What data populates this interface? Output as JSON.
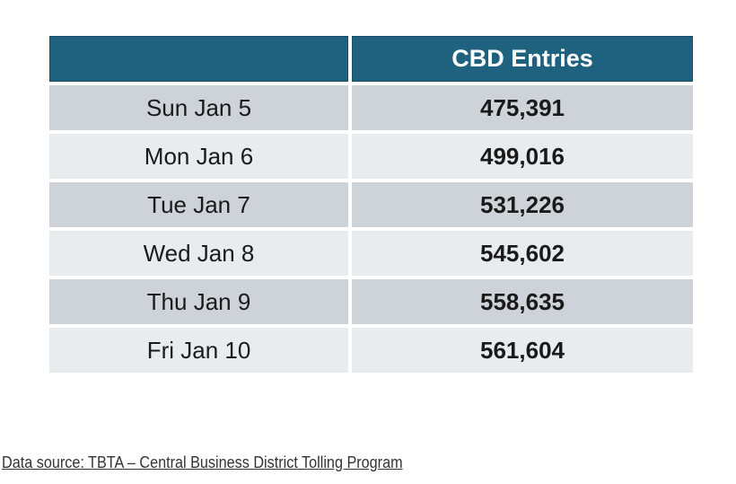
{
  "chart_data": {
    "type": "table",
    "title": "",
    "columns": [
      "",
      "CBD Entries"
    ],
    "rows": [
      {
        "label": "Sun Jan 5",
        "value": "475,391"
      },
      {
        "label": "Mon Jan 6",
        "value": "499,016"
      },
      {
        "label": "Tue Jan 7",
        "value": "531,226"
      },
      {
        "label": "Wed Jan 8",
        "value": "545,602"
      },
      {
        "label": "Thu Jan 9",
        "value": "558,635"
      },
      {
        "label": "Fri Jan 10",
        "value": "561,604"
      }
    ],
    "layout": {
      "striped": true,
      "header_position": "top",
      "legend_position": "none"
    }
  },
  "footer": {
    "text": "Data source: TBTA – Central Business District Tolling Program"
  },
  "colors": {
    "header_bg": "#1f6280",
    "header_border": "#174e66",
    "header_text": "#ffffff",
    "row_stripe_dark": "#ced2d9",
    "row_stripe_light": "#e9ecef",
    "cell_text": "#1a1a1a",
    "footer_text": "#333333"
  }
}
